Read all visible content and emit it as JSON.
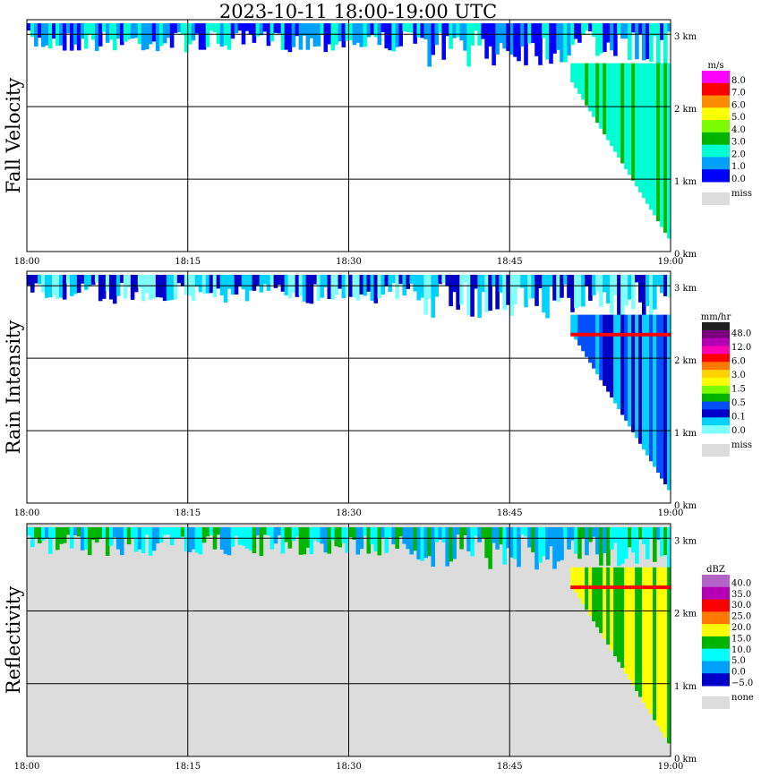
{
  "title": "2023-10-11   18:00-19:00 UTC",
  "colors": {
    "frame": "#000000",
    "missing": "#dcdcdc"
  },
  "chart_data": [
    {
      "type": "heatmap",
      "ylabel": "Fall Velocity",
      "x_ticks": [
        "18:00",
        "18:15",
        "18:30",
        "18:45",
        "19:00"
      ],
      "y_ticks": [
        "0 km",
        "1 km",
        "2 km",
        "3 km"
      ],
      "ylim": [
        0,
        3.2
      ],
      "background": "none",
      "legend": {
        "unit": "m/s",
        "labels": [
          "8.0",
          "7.0",
          "6.0",
          "5.0",
          "4.0",
          "3.0",
          "2.0",
          "1.0",
          "0.0",
          "miss"
        ],
        "colors": [
          "#ff00ff",
          "#ff0000",
          "#ff8c00",
          "#ffff00",
          "#7cfc00",
          "#00b400",
          "#00ffd2",
          "#00a0ff",
          "#0000ff",
          "#dcdcdc"
        ]
      }
    },
    {
      "type": "heatmap",
      "ylabel": "Rain Intensity",
      "x_ticks": [
        "18:00",
        "18:15",
        "18:30",
        "18:45",
        "19:00"
      ],
      "y_ticks": [
        "0 km",
        "1 km",
        "2 km",
        "3 km"
      ],
      "ylim": [
        0,
        3.2
      ],
      "background": "none",
      "legend": {
        "unit": "mm/hr",
        "labels": [
          "48.0",
          "12.0",
          "6.0",
          "3.0",
          "1.5",
          "0.5",
          "0.1",
          "0.0",
          "miss"
        ],
        "colors": [
          "#202020",
          "#7a0080",
          "#b400b4",
          "#ff00b4",
          "#ff0000",
          "#ff7800",
          "#ffd200",
          "#ffff00",
          "#7cfc00",
          "#00b400",
          "#0050ff",
          "#0000c8",
          "#00d2ff",
          "#80ffff",
          "#dcdcdc"
        ]
      }
    },
    {
      "type": "heatmap",
      "ylabel": "Reflectivity",
      "x_ticks": [
        "18:00",
        "18:15",
        "18:30",
        "18:45",
        "19:00"
      ],
      "y_ticks": [
        "0 km",
        "1 km",
        "2 km",
        "3 km"
      ],
      "ylim": [
        0,
        3.2
      ],
      "background": "missing",
      "legend": {
        "unit": "dBZ",
        "labels": [
          "40.0",
          "35.0",
          "30.0",
          "25.0",
          "20.0",
          "15.0",
          "10.0",
          "5.0",
          "0.0",
          "−5.0",
          "none"
        ],
        "colors": [
          "#b464c8",
          "#b400b4",
          "#ff0000",
          "#ff7800",
          "#ffff00",
          "#00b400",
          "#00ffff",
          "#00a0ff",
          "#0000c8",
          "#dcdcdc"
        ]
      }
    }
  ]
}
